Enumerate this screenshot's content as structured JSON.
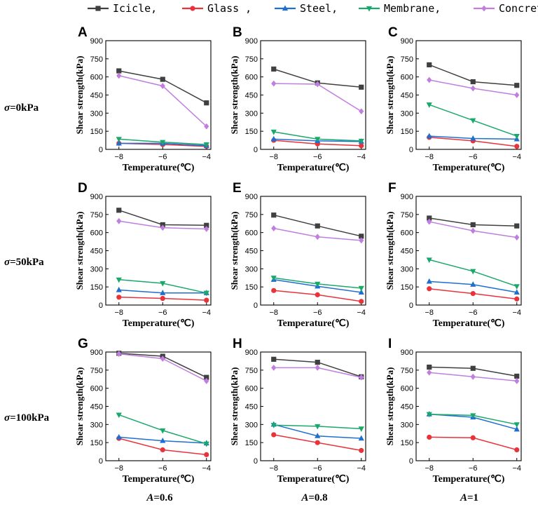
{
  "legend": [
    {
      "label": "Icicle,",
      "color": "#404040",
      "marker": "square"
    },
    {
      "label": "Glass ,",
      "color": "#e8333a",
      "marker": "circle"
    },
    {
      "label": "Steel,",
      "color": "#1f6fd1",
      "marker": "triangle-up"
    },
    {
      "label": "Membrane,",
      "color": "#1aa86b",
      "marker": "triangle-down"
    },
    {
      "label": "Concrete",
      "color": "#c07ee0",
      "marker": "diamond"
    }
  ],
  "row_labels": [
    {
      "sigma": "σ",
      "text": "=0kPa"
    },
    {
      "sigma": "σ",
      "text": "=50kPa"
    },
    {
      "sigma": "σ",
      "text": "=100kPa"
    }
  ],
  "col_labels": [
    {
      "a": "A",
      "text": "=0.6"
    },
    {
      "a": "A",
      "text": "=0.8"
    },
    {
      "a": "A",
      "text": "=1"
    }
  ],
  "axes": {
    "xlabel": "Temperature(℃)",
    "ylabel": "Shear strength(kPa)",
    "xticks": [
      "−8",
      "−6",
      "−4"
    ],
    "yticks": [
      "0",
      "150",
      "300",
      "450",
      "600",
      "750",
      "900"
    ]
  },
  "chart_data": [
    {
      "panel": "A",
      "type": "line",
      "x": [
        -8,
        -6,
        -4
      ],
      "xlim": [
        -8.6,
        -3.8
      ],
      "ylim": [
        0,
        900
      ],
      "series": [
        {
          "name": "Icicle",
          "values": [
            650,
            580,
            385
          ]
        },
        {
          "name": "Glass",
          "values": [
            50,
            40,
            25
          ]
        },
        {
          "name": "Steel",
          "values": [
            50,
            50,
            30
          ]
        },
        {
          "name": "Membrane",
          "values": [
            85,
            60,
            40
          ]
        },
        {
          "name": "Concrete",
          "values": [
            610,
            525,
            190
          ]
        }
      ]
    },
    {
      "panel": "B",
      "type": "line",
      "x": [
        -8,
        -6,
        -4
      ],
      "xlim": [
        -8.6,
        -3.8
      ],
      "ylim": [
        0,
        900
      ],
      "series": [
        {
          "name": "Icicle",
          "values": [
            665,
            550,
            515
          ]
        },
        {
          "name": "Glass",
          "values": [
            75,
            45,
            30
          ]
        },
        {
          "name": "Steel",
          "values": [
            85,
            70,
            65
          ]
        },
        {
          "name": "Membrane",
          "values": [
            145,
            85,
            70
          ]
        },
        {
          "name": "Concrete",
          "values": [
            545,
            540,
            315
          ]
        }
      ]
    },
    {
      "panel": "C",
      "type": "line",
      "x": [
        -8,
        -6,
        -4
      ],
      "xlim": [
        -8.6,
        -3.8
      ],
      "ylim": [
        0,
        900
      ],
      "series": [
        {
          "name": "Icicle",
          "values": [
            700,
            560,
            530
          ]
        },
        {
          "name": "Glass",
          "values": [
            100,
            70,
            25
          ]
        },
        {
          "name": "Steel",
          "values": [
            110,
            90,
            85
          ]
        },
        {
          "name": "Membrane",
          "values": [
            370,
            240,
            110
          ]
        },
        {
          "name": "Concrete",
          "values": [
            575,
            505,
            450
          ]
        }
      ]
    },
    {
      "panel": "D",
      "type": "line",
      "x": [
        -8,
        -6,
        -4
      ],
      "xlim": [
        -8.6,
        -3.8
      ],
      "ylim": [
        0,
        900
      ],
      "series": [
        {
          "name": "Icicle",
          "values": [
            785,
            665,
            660
          ]
        },
        {
          "name": "Glass",
          "values": [
            65,
            55,
            40
          ]
        },
        {
          "name": "Steel",
          "values": [
            125,
            100,
            100
          ]
        },
        {
          "name": "Membrane",
          "values": [
            210,
            180,
            100
          ]
        },
        {
          "name": "Concrete",
          "values": [
            695,
            640,
            630
          ]
        }
      ]
    },
    {
      "panel": "E",
      "type": "line",
      "x": [
        -8,
        -6,
        -4
      ],
      "xlim": [
        -8.6,
        -3.8
      ],
      "ylim": [
        0,
        900
      ],
      "series": [
        {
          "name": "Icicle",
          "values": [
            745,
            655,
            570
          ]
        },
        {
          "name": "Glass",
          "values": [
            120,
            85,
            30
          ]
        },
        {
          "name": "Steel",
          "values": [
            210,
            155,
            105
          ]
        },
        {
          "name": "Membrane",
          "values": [
            225,
            175,
            140
          ]
        },
        {
          "name": "Concrete",
          "values": [
            635,
            565,
            535
          ]
        }
      ]
    },
    {
      "panel": "F",
      "type": "line",
      "x": [
        -8,
        -6,
        -4
      ],
      "xlim": [
        -8.6,
        -3.8
      ],
      "ylim": [
        0,
        900
      ],
      "series": [
        {
          "name": "Icicle",
          "values": [
            720,
            665,
            655
          ]
        },
        {
          "name": "Glass",
          "values": [
            135,
            95,
            50
          ]
        },
        {
          "name": "Steel",
          "values": [
            195,
            170,
            105
          ]
        },
        {
          "name": "Membrane",
          "values": [
            375,
            280,
            155
          ]
        },
        {
          "name": "Concrete",
          "values": [
            690,
            615,
            560
          ]
        }
      ]
    },
    {
      "panel": "G",
      "type": "line",
      "x": [
        -8,
        -6,
        -4
      ],
      "xlim": [
        -8.6,
        -3.8
      ],
      "ylim": [
        0,
        900
      ],
      "series": [
        {
          "name": "Icicle",
          "values": [
            890,
            865,
            690
          ]
        },
        {
          "name": "Glass",
          "values": [
            185,
            90,
            50
          ]
        },
        {
          "name": "Steel",
          "values": [
            195,
            165,
            145
          ]
        },
        {
          "name": "Membrane",
          "values": [
            380,
            250,
            140
          ]
        },
        {
          "name": "Concrete",
          "values": [
            885,
            845,
            660
          ]
        }
      ]
    },
    {
      "panel": "H",
      "type": "line",
      "x": [
        -8,
        -6,
        -4
      ],
      "xlim": [
        -8.6,
        -3.8
      ],
      "ylim": [
        0,
        900
      ],
      "series": [
        {
          "name": "Icicle",
          "values": [
            840,
            815,
            695
          ]
        },
        {
          "name": "Glass",
          "values": [
            215,
            150,
            85
          ]
        },
        {
          "name": "Steel",
          "values": [
            300,
            205,
            185
          ]
        },
        {
          "name": "Membrane",
          "values": [
            295,
            285,
            265
          ]
        },
        {
          "name": "Concrete",
          "values": [
            770,
            770,
            690
          ]
        }
      ]
    },
    {
      "panel": "I",
      "type": "line",
      "x": [
        -8,
        -6,
        -4
      ],
      "xlim": [
        -8.6,
        -3.8
      ],
      "ylim": [
        0,
        900
      ],
      "series": [
        {
          "name": "Icicle",
          "values": [
            775,
            765,
            700
          ]
        },
        {
          "name": "Glass",
          "values": [
            195,
            190,
            90
          ]
        },
        {
          "name": "Steel",
          "values": [
            385,
            360,
            260
          ]
        },
        {
          "name": "Membrane",
          "values": [
            385,
            375,
            300
          ]
        },
        {
          "name": "Concrete",
          "values": [
            730,
            695,
            660
          ]
        }
      ]
    }
  ]
}
